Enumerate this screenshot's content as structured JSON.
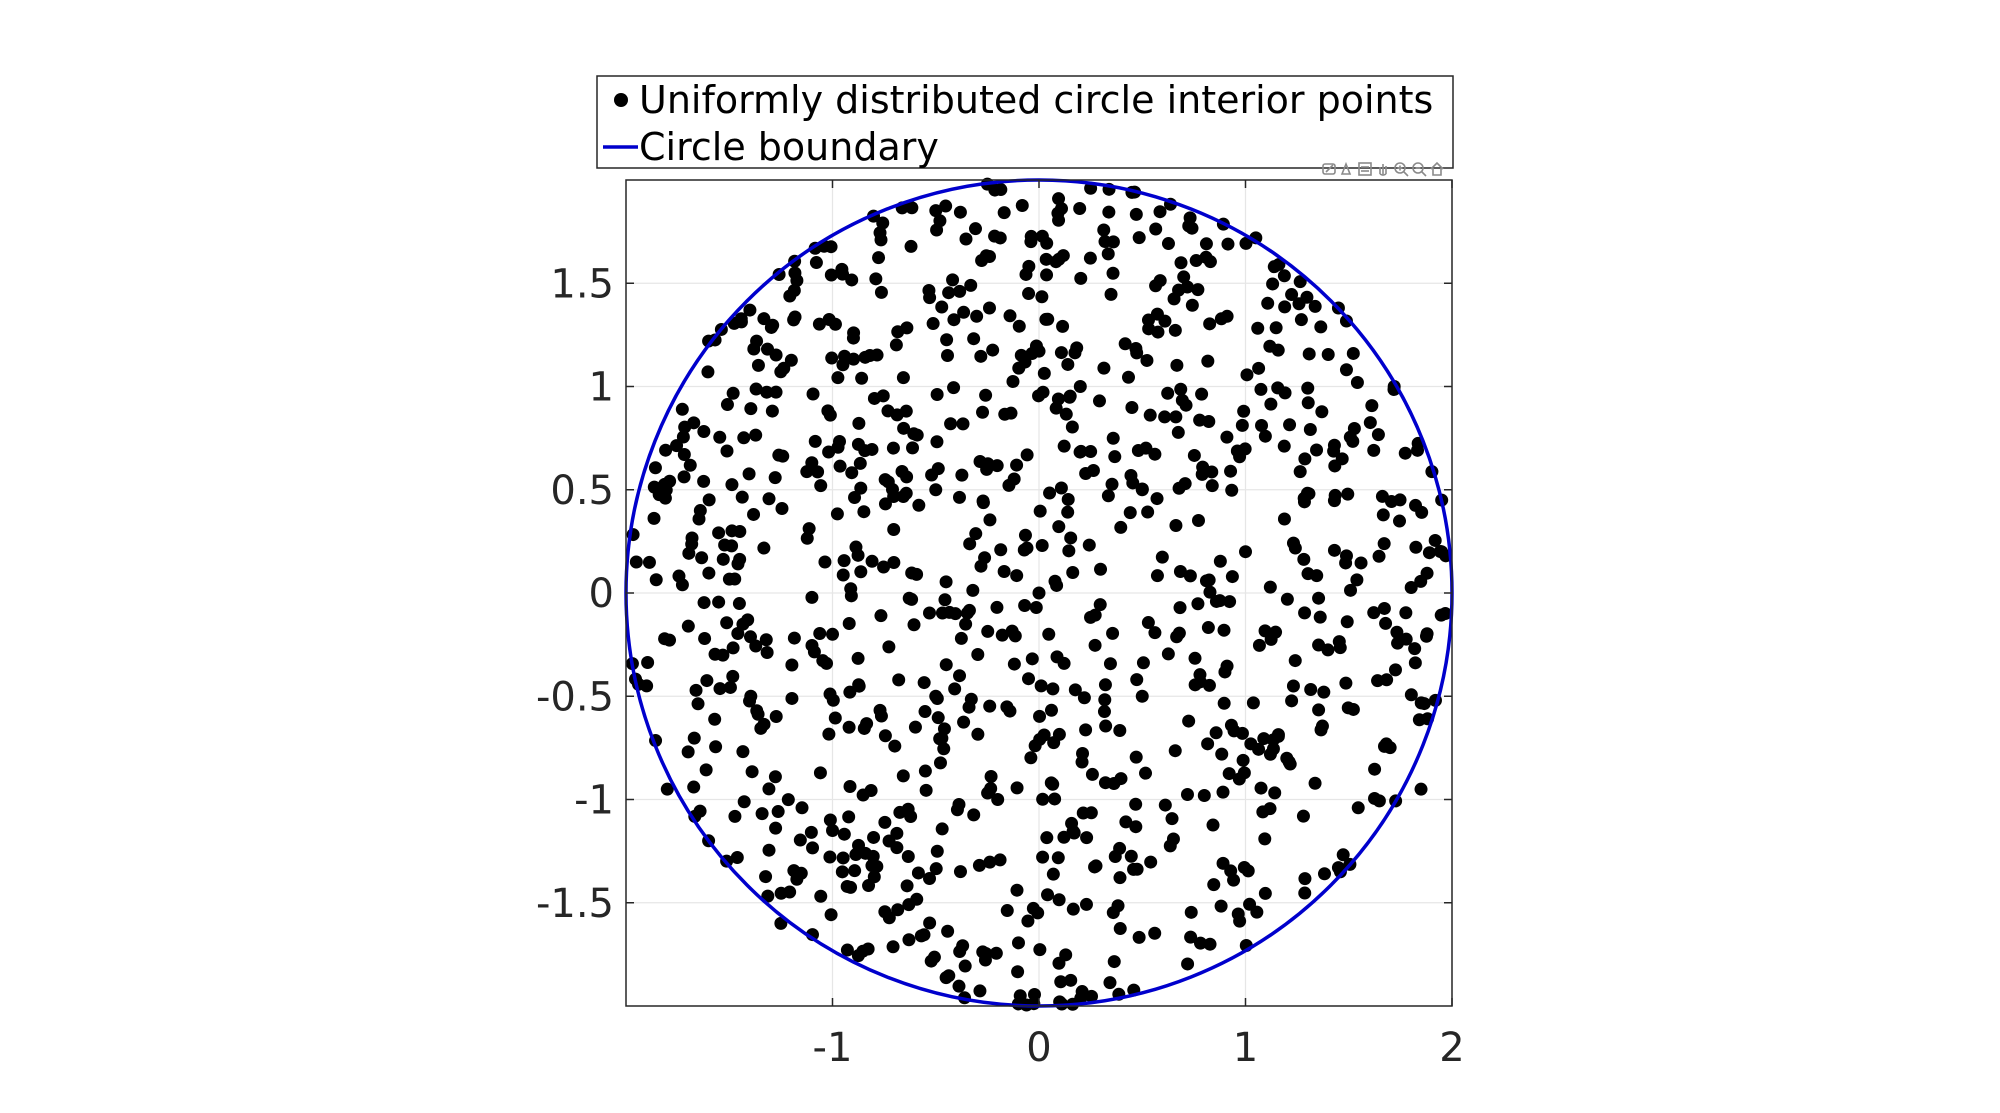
{
  "chart_data": {
    "type": "scatter",
    "title": "",
    "xlabel": "",
    "ylabel": "",
    "xlim": [
      -2,
      2
    ],
    "ylim": [
      -2,
      2
    ],
    "x_ticks": [
      -1,
      0,
      1,
      2
    ],
    "x_tick_labels": [
      "-1",
      "0",
      "1",
      "2"
    ],
    "y_ticks": [
      -1.5,
      -1,
      -0.5,
      0,
      0.5,
      1,
      1.5
    ],
    "y_tick_labels": [
      "-1.5",
      "-1",
      "-0.5",
      "0",
      "0.5",
      "1",
      "1.5"
    ],
    "grid": true,
    "box": true,
    "aspect": "equal",
    "legend": {
      "location": "northoutside",
      "entries": [
        "Uniformly distributed circle interior points",
        "Circle boundary"
      ]
    },
    "series": [
      {
        "name": "Uniformly distributed circle interior points",
        "type": "scatter",
        "marker": "filled-circle",
        "color": "#000000",
        "count": 1000,
        "distribution": "uniform over disk of radius 2 centered at (0,0)",
        "sample_points": [
          [
            -0.25,
            1.98
          ],
          [
            0.25,
            1.96
          ],
          [
            0.45,
            1.94
          ],
          [
            1.05,
            1.72
          ],
          [
            1.45,
            1.38
          ],
          [
            -1.4,
            1.37
          ],
          [
            -1.6,
            1.22
          ],
          [
            1.72,
            1.0
          ],
          [
            1.95,
            0.45
          ],
          [
            1.97,
            0.18
          ],
          [
            -1.95,
            0.15
          ],
          [
            -1.9,
            -0.45
          ],
          [
            1.92,
            -0.52
          ],
          [
            -1.8,
            -0.95
          ],
          [
            1.85,
            -0.95
          ],
          [
            -1.6,
            -1.2
          ],
          [
            1.45,
            -1.33
          ],
          [
            -1.25,
            -1.6
          ],
          [
            0.1,
            -1.98
          ],
          [
            -0.1,
            -1.99
          ],
          [
            0.0,
            0.0
          ],
          [
            0.5,
            0.5
          ],
          [
            -0.5,
            0.5
          ],
          [
            0.5,
            -0.5
          ],
          [
            -0.5,
            -0.5
          ],
          [
            1.0,
            0.2
          ],
          [
            -1.0,
            -0.2
          ],
          [
            0.2,
            1.0
          ],
          [
            -0.2,
            -1.0
          ],
          [
            1.2,
            -0.8
          ]
        ]
      },
      {
        "name": "Circle boundary",
        "type": "line",
        "color": "#0000CC",
        "shape": "circle",
        "center": [
          0,
          0
        ],
        "radius": 2
      }
    ]
  },
  "toolbar": {
    "icons": [
      "brush-icon",
      "data-tip-icon",
      "restore-view-icon",
      "pan-icon",
      "zoom-in-icon",
      "zoom-out-icon",
      "home-icon"
    ]
  }
}
